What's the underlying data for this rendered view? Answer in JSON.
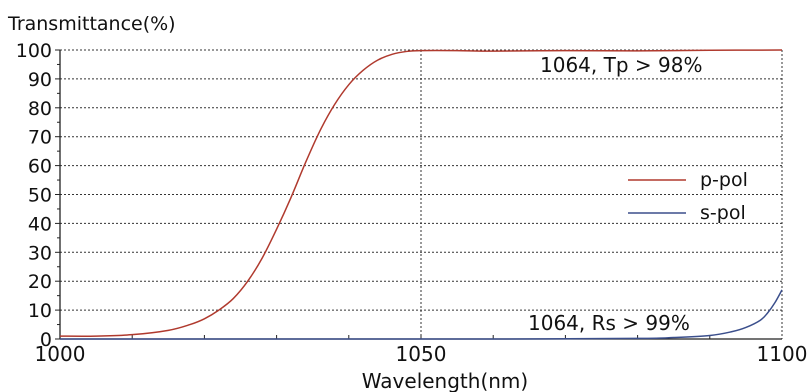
{
  "chart_data": {
    "type": "line",
    "title": "",
    "ylabel": "Transmittance(%)",
    "xlabel": "Wavelength(nm)",
    "xlim": [
      1000,
      1100
    ],
    "ylim": [
      0,
      100
    ],
    "x_ticks": [
      1000,
      1050,
      1100
    ],
    "y_ticks": [
      0,
      10,
      20,
      30,
      40,
      50,
      60,
      70,
      80,
      90,
      100
    ],
    "grid": true,
    "legend_position": "right-middle",
    "series": [
      {
        "name": "p-pol",
        "color": "#b03a2e",
        "x": [
          1000,
          1005,
          1010,
          1015,
          1018,
          1020,
          1022,
          1024,
          1026,
          1028,
          1030,
          1032,
          1034,
          1036,
          1038,
          1040,
          1042,
          1044,
          1046,
          1048,
          1050,
          1055,
          1060,
          1070,
          1080,
          1090,
          1100
        ],
        "y": [
          1,
          1,
          1.5,
          3,
          5,
          7,
          10,
          14,
          20,
          28,
          38,
          49,
          61,
          72,
          81,
          88,
          93,
          96.5,
          98.5,
          99.5,
          99.8,
          99.8,
          99.6,
          99.8,
          99.7,
          99.9,
          100
        ]
      },
      {
        "name": "s-pol",
        "color": "#3b4f8c",
        "x": [
          1000,
          1020,
          1040,
          1060,
          1080,
          1085,
          1090,
          1093,
          1095,
          1097,
          1098,
          1099,
          1100
        ],
        "y": [
          0,
          0,
          0,
          0,
          0.2,
          0.5,
          1.2,
          2.5,
          4,
          6.5,
          9,
          12.5,
          17
        ]
      }
    ],
    "annotations": [
      {
        "text": "1064, Tp > 98%",
        "x": 1064,
        "y": 98
      },
      {
        "text": "1064, Rs > 99%",
        "x": 1064,
        "y": 1
      }
    ]
  }
}
